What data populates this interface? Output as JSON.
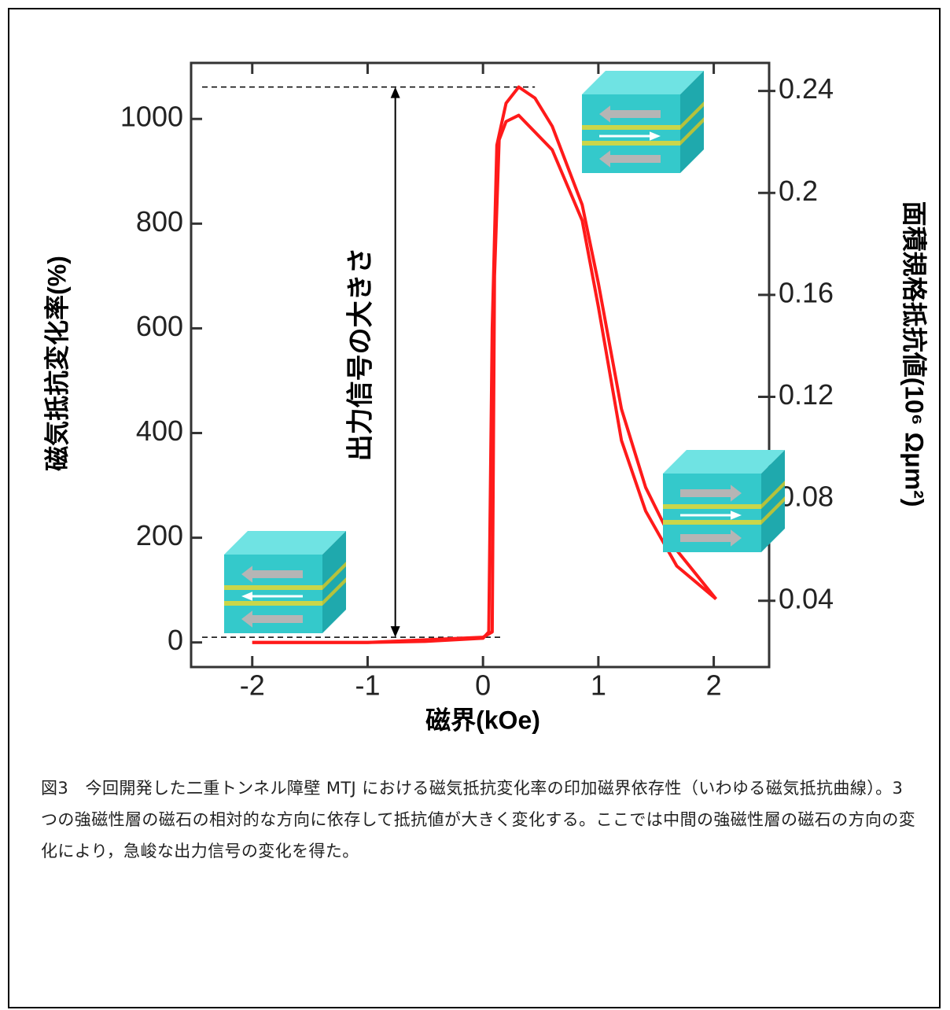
{
  "chart_data": {
    "type": "line",
    "xlabel": "磁界(kOe)",
    "ylabel": "磁気抵抗変化率(%)",
    "y2label": "面積規格抵抗値(10⁶ Ωμm²)",
    "xlim": [
      -2.53,
      2.48
    ],
    "xticks": [
      -2,
      -1,
      0,
      1,
      2
    ],
    "ylim": [
      -47,
      1107
    ],
    "yticks": [
      0,
      200,
      400,
      600,
      800,
      1000
    ],
    "y2lim": [
      0.014,
      0.251
    ],
    "y2ticks": [
      0.04,
      0.08,
      0.12,
      0.16,
      0.2,
      0.24
    ],
    "series": [
      {
        "color": "#ff1a1a",
        "x": [
          -2,
          -1,
          -0.5,
          0,
          0.05,
          0.08,
          0.12,
          0.2,
          0.31,
          0.45,
          0.6,
          0.86,
          1.0,
          1.2,
          1.41,
          1.68,
          2.02
        ],
        "values": [
          0,
          0,
          2,
          8,
          20,
          600,
          950,
          1030,
          1061,
          1040,
          986,
          836,
          686,
          446,
          296,
          176,
          83
        ]
      },
      {
        "color": "#ff1a1a",
        "x": [
          -2,
          -1,
          0,
          0.08,
          0.1,
          0.14,
          0.2,
          0.31,
          0.6,
          0.86,
          1.0,
          1.2,
          1.41,
          1.68,
          2.02
        ],
        "values": [
          0,
          0,
          10,
          20,
          700,
          960,
          995,
          1007,
          941,
          806,
          641,
          386,
          251,
          146,
          83
        ]
      }
    ],
    "annotation": {
      "text": "出力信号の大きさ",
      "x": -0.76,
      "from": 10,
      "to": 1061
    },
    "caption": "図3　今回開発した二重トンネル障壁 MTJ における磁気抵抗変化率の印加磁界依存性（いわゆる磁気抵抗曲線）。3 つの強磁性層の磁石の相対的な方向に依存して抵抗値が大きく変化する。ここでは中間の強磁性層の磁石の方向の変化により，急峻な出力信号の変化を得た。"
  }
}
